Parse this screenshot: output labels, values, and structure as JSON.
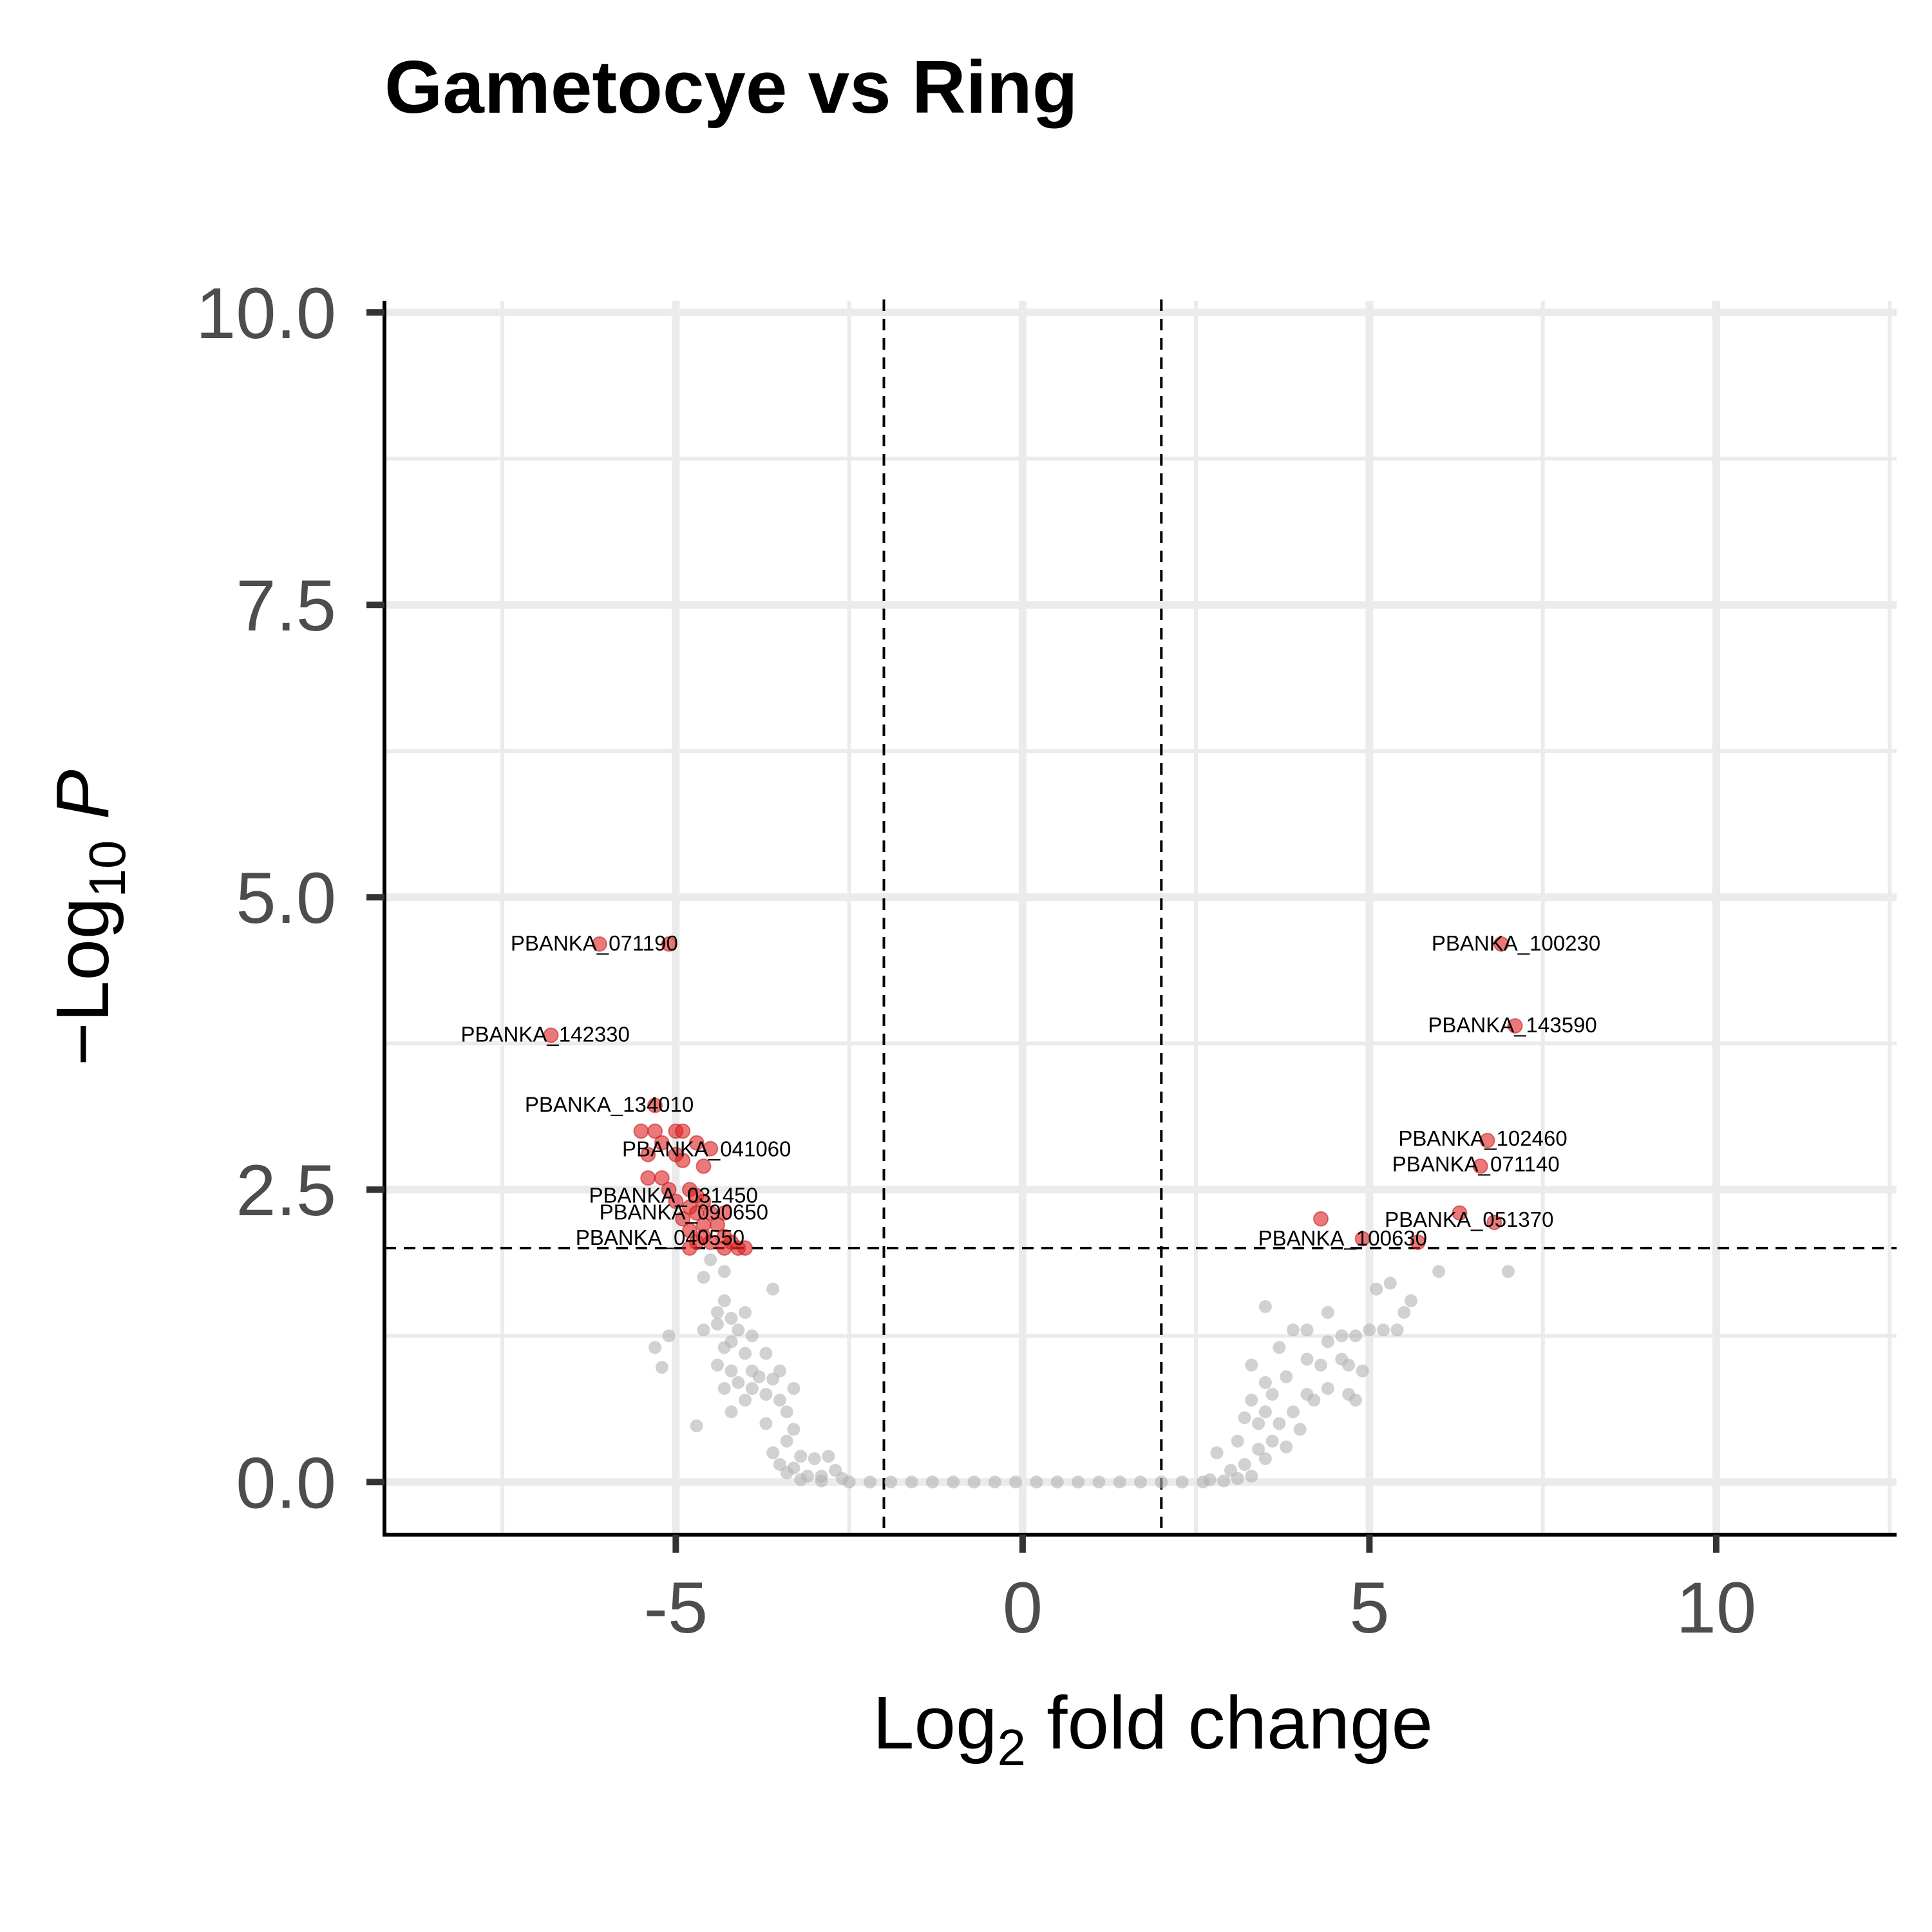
{
  "chart_data": {
    "type": "scatter",
    "title": "Gametocye vs Ring",
    "xlabel": {
      "main": "Log",
      "sub": "2",
      "rest": " fold change"
    },
    "ylabel": {
      "main": "−Log",
      "sub": "10",
      "rest": " P"
    },
    "xlim": [
      -9.2,
      12.6
    ],
    "ylim": [
      -0.45,
      10.1
    ],
    "x_ticks": [
      -5,
      0,
      5,
      10
    ],
    "x_tick_labels": [
      "-5",
      "0",
      "5",
      "10"
    ],
    "y_ticks": [
      0,
      2.5,
      5,
      7.5,
      10
    ],
    "y_tick_labels": [
      "0.0",
      "2.5",
      "5.0",
      "7.5",
      "10.0"
    ],
    "grid": true,
    "fold_change_cutoffs": [
      -2,
      2
    ],
    "pvalue_cutoff": 2,
    "colors": {
      "significant": "#e02020",
      "not_significant": "#b3b3b3",
      "grid": "#ebebeb"
    },
    "significant_points": [
      [
        -6.1,
        4.6
      ],
      [
        -5.1,
        4.6
      ],
      [
        -6.8,
        3.82
      ],
      [
        -5.3,
        3.22
      ],
      [
        -5.5,
        3.0
      ],
      [
        -5.3,
        3.0
      ],
      [
        -5.0,
        3.0
      ],
      [
        -4.9,
        3.0
      ],
      [
        -5.2,
        2.9
      ],
      [
        -4.7,
        2.9
      ],
      [
        -5.4,
        2.8
      ],
      [
        -5.0,
        2.8
      ],
      [
        -4.5,
        2.85
      ],
      [
        -4.9,
        2.75
      ],
      [
        -4.6,
        2.7
      ],
      [
        -5.4,
        2.6
      ],
      [
        -5.2,
        2.6
      ],
      [
        -5.1,
        2.5
      ],
      [
        -4.8,
        2.5
      ],
      [
        -4.7,
        2.45
      ],
      [
        -4.6,
        2.4
      ],
      [
        -5.0,
        2.4
      ],
      [
        -4.8,
        2.35
      ],
      [
        -4.7,
        2.3
      ],
      [
        -4.5,
        2.3
      ],
      [
        -4.3,
        2.3
      ],
      [
        -4.9,
        2.25
      ],
      [
        -4.6,
        2.2
      ],
      [
        -4.4,
        2.2
      ],
      [
        -4.8,
        2.15
      ],
      [
        -4.3,
        2.1
      ],
      [
        -4.6,
        2.1
      ],
      [
        -4.7,
        2.05
      ],
      [
        -4.5,
        2.05
      ],
      [
        -4.2,
        2.05
      ],
      [
        -4.8,
        2.0
      ],
      [
        -4.3,
        2.0
      ],
      [
        -4.1,
        2.0
      ],
      [
        -4.0,
        2.0
      ],
      [
        6.9,
        4.6
      ],
      [
        7.1,
        3.9
      ],
      [
        6.7,
        2.92
      ],
      [
        6.6,
        2.7
      ],
      [
        6.8,
        2.22
      ],
      [
        6.3,
        2.3
      ],
      [
        4.3,
        2.25
      ],
      [
        4.9,
        2.08
      ],
      [
        5.7,
        2.05
      ]
    ],
    "nonsignificant_points": [
      [
        -4.5,
        1.9
      ],
      [
        -4.3,
        1.8
      ],
      [
        -4.6,
        1.75
      ],
      [
        -3.6,
        1.65
      ],
      [
        -4.3,
        1.55
      ],
      [
        -4.4,
        1.45
      ],
      [
        -4.0,
        1.45
      ],
      [
        -4.2,
        1.4
      ],
      [
        -4.4,
        1.35
      ],
      [
        -4.1,
        1.3
      ],
      [
        -3.9,
        1.25
      ],
      [
        -5.1,
        1.25
      ],
      [
        -4.6,
        1.3
      ],
      [
        -4.2,
        1.2
      ],
      [
        -4.3,
        1.15
      ],
      [
        -5.3,
        1.15
      ],
      [
        -4.0,
        1.1
      ],
      [
        -3.7,
        1.1
      ],
      [
        -4.4,
        1.0
      ],
      [
        -4.2,
        0.95
      ],
      [
        -3.9,
        0.95
      ],
      [
        -3.5,
        0.95
      ],
      [
        -3.8,
        0.9
      ],
      [
        -3.6,
        0.88
      ],
      [
        -4.1,
        0.85
      ],
      [
        -3.9,
        0.8
      ],
      [
        -4.3,
        0.8
      ],
      [
        -3.3,
        0.8
      ],
      [
        -5.2,
        0.98
      ],
      [
        -3.7,
        0.75
      ],
      [
        -3.5,
        0.7
      ],
      [
        -4.0,
        0.7
      ],
      [
        -3.4,
        0.6
      ],
      [
        -4.2,
        0.6
      ],
      [
        -3.7,
        0.5
      ],
      [
        -4.7,
        0.48
      ],
      [
        -3.3,
        0.45
      ],
      [
        -3.4,
        0.35
      ],
      [
        -3.6,
        0.25
      ],
      [
        -3.2,
        0.22
      ],
      [
        -3.0,
        0.2
      ],
      [
        -2.8,
        0.22
      ],
      [
        -3.5,
        0.15
      ],
      [
        -3.3,
        0.12
      ],
      [
        -2.7,
        0.1
      ],
      [
        -3.4,
        0.08
      ],
      [
        -3.1,
        0.05
      ],
      [
        -2.9,
        0.05
      ],
      [
        -2.6,
        0.03
      ],
      [
        -3.2,
        0.02
      ],
      [
        -2.9,
        0.01
      ],
      [
        -2.5,
        0.0
      ],
      [
        -2.2,
        0.0
      ],
      [
        -1.9,
        0.0
      ],
      [
        -1.6,
        0.0
      ],
      [
        -1.3,
        0.0
      ],
      [
        -1.0,
        0.0
      ],
      [
        -0.7,
        0.0
      ],
      [
        -0.4,
        0.0
      ],
      [
        -0.1,
        0.0
      ],
      [
        0.2,
        0.0
      ],
      [
        0.5,
        0.0
      ],
      [
        0.8,
        0.0
      ],
      [
        1.1,
        0.0
      ],
      [
        1.4,
        0.0
      ],
      [
        1.7,
        0.0
      ],
      [
        2.0,
        0.0
      ],
      [
        2.3,
        0.0
      ],
      [
        2.6,
        0.0
      ],
      [
        2.9,
        0.01
      ],
      [
        3.1,
        0.03
      ],
      [
        3.3,
        0.05
      ],
      [
        2.7,
        0.02
      ],
      [
        3.0,
        0.1
      ],
      [
        3.2,
        0.15
      ],
      [
        2.8,
        0.25
      ],
      [
        3.4,
        0.28
      ],
      [
        3.5,
        0.2
      ],
      [
        3.6,
        0.35
      ],
      [
        3.1,
        0.35
      ],
      [
        3.8,
        0.3
      ],
      [
        4.0,
        0.45
      ],
      [
        3.7,
        0.5
      ],
      [
        3.4,
        0.5
      ],
      [
        3.2,
        0.55
      ],
      [
        3.9,
        0.6
      ],
      [
        3.5,
        0.6
      ],
      [
        3.3,
        0.7
      ],
      [
        4.2,
        0.7
      ],
      [
        3.6,
        0.75
      ],
      [
        4.4,
        0.8
      ],
      [
        3.5,
        0.85
      ],
      [
        4.1,
        0.75
      ],
      [
        4.7,
        0.75
      ],
      [
        4.8,
        0.7
      ],
      [
        3.8,
        0.9
      ],
      [
        4.3,
        1.0
      ],
      [
        4.1,
        1.05
      ],
      [
        3.3,
        1.0
      ],
      [
        4.7,
        1.0
      ],
      [
        4.6,
        1.05
      ],
      [
        4.9,
        0.95
      ],
      [
        3.7,
        1.15
      ],
      [
        4.4,
        1.2
      ],
      [
        4.6,
        1.25
      ],
      [
        4.8,
        1.25
      ],
      [
        3.9,
        1.3
      ],
      [
        4.1,
        1.3
      ],
      [
        5.0,
        1.3
      ],
      [
        5.2,
        1.3
      ],
      [
        5.4,
        1.3
      ],
      [
        3.5,
        1.5
      ],
      [
        4.4,
        1.45
      ],
      [
        5.5,
        1.45
      ],
      [
        5.6,
        1.55
      ],
      [
        5.1,
        1.65
      ],
      [
        5.3,
        1.7
      ],
      [
        7.0,
        1.8
      ],
      [
        6.0,
        1.8
      ]
    ],
    "labels": [
      {
        "text": "PBANKA_071190",
        "x": -6.1,
        "y": 4.6,
        "dx": -8.0,
        "dy": 10.0
      },
      {
        "text": "PBANKA_142330",
        "x": -6.8,
        "y": 3.82,
        "dx": -8.8,
        "dy": 10.0
      },
      {
        "text": "PBANKA_134010",
        "x": -5.3,
        "y": 3.22,
        "dx": -71.0,
        "dy": 10.0
      },
      {
        "text": "PBANKA_041060",
        "x": -4.5,
        "y": 2.85,
        "dx": -6.0,
        "dy": 12.0
      },
      {
        "text": "PBANKA_031450",
        "x": -4.7,
        "y": 2.45,
        "dx": -36.0,
        "dy": 11.0
      },
      {
        "text": "PBANKA_090650",
        "x": -4.3,
        "y": 2.3,
        "dx": -63.0,
        "dy": 10.0
      },
      {
        "text": "PBANKA_040550",
        "x": -4.8,
        "y": 2.0,
        "dx": -46.0,
        "dy": -5.0
      },
      {
        "text": "PBANKA_100230",
        "x": 6.9,
        "y": 4.6,
        "dx": 23.0,
        "dy": 10.0
      },
      {
        "text": "PBANKA_143590",
        "x": 7.1,
        "y": 3.9,
        "dx": -4.0,
        "dy": 10.0
      },
      {
        "text": "PBANKA_102460",
        "x": 6.7,
        "y": 2.92,
        "dx": -7.0,
        "dy": 8.0
      },
      {
        "text": "PBANKA_071140",
        "x": 6.6,
        "y": 2.7,
        "dx": -7.0,
        "dy": 8.0
      },
      {
        "text": "PBANKA_051370",
        "x": 6.8,
        "y": 2.22,
        "dx": -39.0,
        "dy": 7.0
      },
      {
        "text": "PBANKA_100630",
        "x": 5.7,
        "y": 2.05,
        "dx": -117.0,
        "dy": 5.0
      }
    ]
  }
}
